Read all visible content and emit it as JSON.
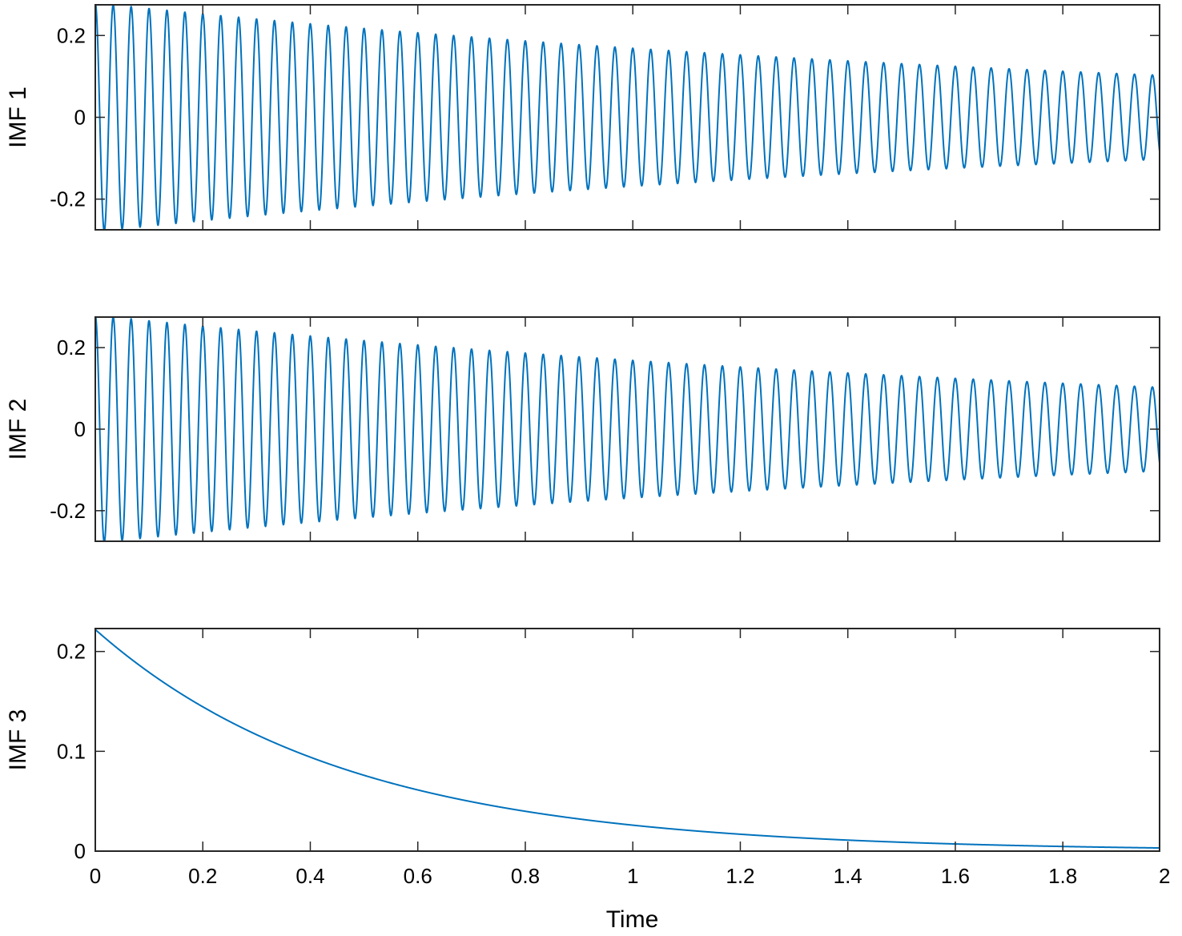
{
  "chart_data": [
    {
      "type": "line",
      "ylabel": "IMF 1",
      "xlim": [
        0,
        1.98
      ],
      "ylim": [
        -0.275,
        0.275
      ],
      "yticks": [
        -0.2,
        0,
        0.2
      ],
      "ytick_labels": [
        "-0.2",
        "0",
        "0.2"
      ],
      "xticks": [
        0,
        0.2,
        0.4,
        0.6,
        0.8,
        1,
        1.2,
        1.4,
        1.6,
        1.8
      ],
      "show_xtick_labels": false,
      "grid": false,
      "series": [
        {
          "signal": "damped_cosine",
          "t_start": 0,
          "t_end": 1.98,
          "amplitude_at_t0": 0.28,
          "amplitude_at_tend": 0.103,
          "frequency_hz": 30,
          "color": "#0072BD"
        }
      ]
    },
    {
      "type": "line",
      "ylabel": "IMF 2",
      "xlim": [
        0,
        1.98
      ],
      "ylim": [
        -0.275,
        0.275
      ],
      "yticks": [
        -0.2,
        0,
        0.2
      ],
      "ytick_labels": [
        "-0.2",
        "0",
        "0.2"
      ],
      "xticks": [
        0,
        0.2,
        0.4,
        0.6,
        0.8,
        1,
        1.2,
        1.4,
        1.6,
        1.8
      ],
      "show_xtick_labels": false,
      "grid": false,
      "series": [
        {
          "signal": "damped_cosine",
          "t_start": 0,
          "t_end": 1.98,
          "amplitude_at_t0": 0.28,
          "amplitude_at_tend": 0.103,
          "frequency_hz": 30,
          "color": "#0072BD"
        }
      ]
    },
    {
      "type": "line",
      "ylabel": "IMF 3",
      "xlabel": "Time",
      "xlim": [
        0,
        1.98
      ],
      "ylim": [
        0,
        0.223
      ],
      "yticks": [
        0,
        0.1,
        0.2
      ],
      "ytick_labels": [
        "0",
        "0.1",
        "0.2"
      ],
      "xticks": [
        0,
        0.2,
        0.4,
        0.6,
        0.8,
        1,
        1.2,
        1.4,
        1.6,
        1.8
      ],
      "xtick_labels": [
        "0",
        "0.2",
        "0.4",
        "0.6",
        "0.8",
        "1",
        "1.2",
        "1.4",
        "1.6",
        "1.8"
      ],
      "extra_xtick_label": "2",
      "show_xtick_labels": true,
      "grid": false,
      "series": [
        {
          "signal": "exponential_decay",
          "t_start": 0,
          "t_end": 1.98,
          "value_at_t0": 0.222,
          "value_at_t1": 0.026,
          "value_at_tend": 0.003,
          "color": "#0072BD"
        }
      ]
    }
  ]
}
